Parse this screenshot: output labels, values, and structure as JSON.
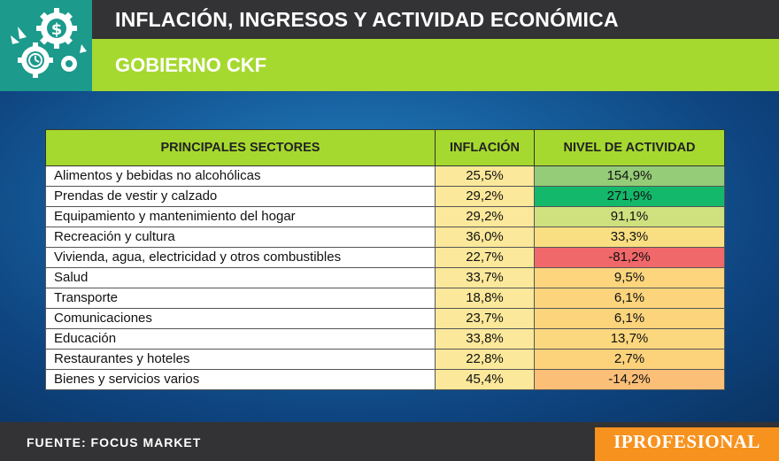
{
  "header": {
    "title": "INFLACIÓN, INGRESOS Y ACTIVIDAD ECONÓMICA",
    "subtitle": "GOBIERNO CKF"
  },
  "footer": {
    "source": "FUENTE: FOCUS MARKET",
    "brand": "IPROFESIONAL"
  },
  "chart_data": {
    "type": "table",
    "columns": [
      "PRINCIPALES SECTORES",
      "INFLACIÓN",
      "NIVEL DE ACTIVIDAD"
    ],
    "rows": [
      {
        "sector": "Alimentos y bebidas no alcohólicas",
        "inflacion": "25,5%",
        "actividad": "154,9%",
        "actividad_color": "#95cc78"
      },
      {
        "sector": "Prendas de vestir y calzado",
        "inflacion": "29,2%",
        "actividad": "271,9%",
        "actividad_color": "#14b86a"
      },
      {
        "sector": "Equipamiento y mantenimiento del hogar",
        "inflacion": "29,2%",
        "actividad": "91,1%",
        "actividad_color": "#cfe07f"
      },
      {
        "sector": "Recreación y cultura",
        "inflacion": "36,0%",
        "actividad": "33,3%",
        "actividad_color": "#fadf82"
      },
      {
        "sector": "Vivienda, agua, electricidad y otros combustibles",
        "inflacion": "22,7%",
        "actividad": "-81,2%",
        "actividad_color": "#f0686a"
      },
      {
        "sector": "Salud",
        "inflacion": "33,7%",
        "actividad": "9,5%",
        "actividad_color": "#fcd57d"
      },
      {
        "sector": "Transporte",
        "inflacion": "18,8%",
        "actividad": "6,1%",
        "actividad_color": "#fcd47c"
      },
      {
        "sector": "Comunicaciones",
        "inflacion": "23,7%",
        "actividad": "6,1%",
        "actividad_color": "#fcd47c"
      },
      {
        "sector": "Educación",
        "inflacion": "33,8%",
        "actividad": "13,7%",
        "actividad_color": "#fbd77e"
      },
      {
        "sector": "Restaurantes y hoteles",
        "inflacion": "22,8%",
        "actividad": "2,7%",
        "actividad_color": "#fcd27b"
      },
      {
        "sector": "Bienes y servicios varios",
        "inflacion": "45,4%",
        "actividad": "-14,2%",
        "actividad_color": "#fbbf78"
      }
    ]
  }
}
